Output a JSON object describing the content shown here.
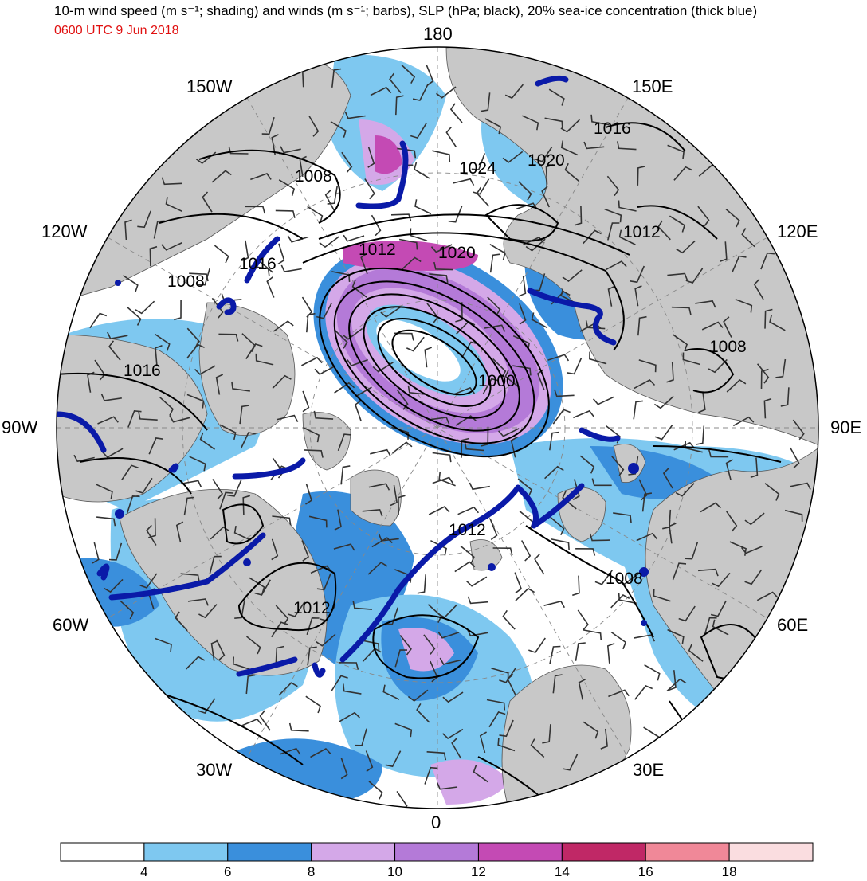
{
  "header": {
    "title": "10-m wind speed (m s⁻¹; shading) and winds (m s⁻¹; barbs), SLP (hPa; black), 20% sea-ice concentration (thick blue)",
    "valid_time": "0600 UTC 9 Jun 2018"
  },
  "colors": {
    "title_time": "#e01010",
    "land": "#c8c8c8",
    "sea_ice_edge": "#0a1aa8",
    "isobar": "#000000",
    "barb": "#333333"
  },
  "longitude_labels": {
    "l180": "180",
    "l150E": "150E",
    "l120E": "120E",
    "l90E": "90E",
    "l60E": "60E",
    "l30E": "30E",
    "l0": "0",
    "l30W": "30W",
    "l60W": "60W",
    "l90W": "90W",
    "l120W": "120W",
    "l150W": "150W"
  },
  "isobar_labels": {
    "p1": "1008",
    "p2": "1024",
    "p3": "1020",
    "p4": "1016",
    "p5": "1012",
    "p6": "1020",
    "p7": "1016",
    "p8": "1008",
    "p9": "1016",
    "p10": "1000",
    "p11": "1008",
    "p12": "1012",
    "p13": "1008",
    "p14": "1012",
    "p15": "1012"
  },
  "colorbar": {
    "colors": [
      "#ffffff",
      "#7ec8f0",
      "#3a8fdc",
      "#d4a8e8",
      "#b47ad8",
      "#c44ab4",
      "#c02866",
      "#f08898",
      "#fadde0"
    ],
    "labels": [
      "4",
      "6",
      "8",
      "10",
      "12",
      "14",
      "16",
      "18"
    ]
  }
}
